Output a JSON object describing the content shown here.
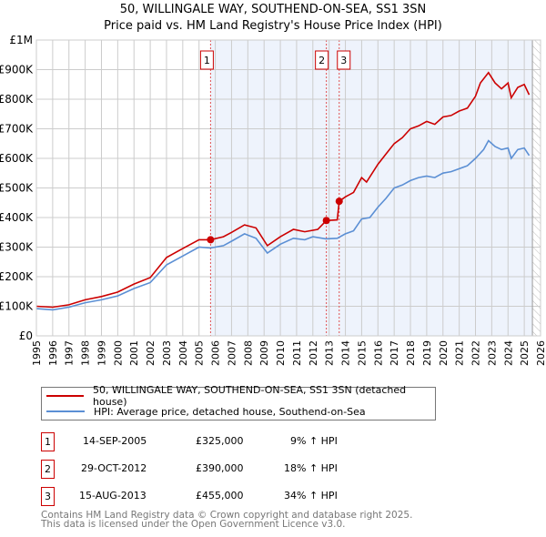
{
  "title": "50, WILLINGALE WAY, SOUTHEND-ON-SEA, SS1 3SN",
  "subtitle": "Price paid vs. HM Land Registry's House Price Index (HPI)",
  "chart_data": {
    "type": "line",
    "title": "Price paid vs. HM Land Registry's House Price Index (HPI)",
    "xlim": [
      1995,
      2026
    ],
    "ylim": [
      0,
      1000000
    ],
    "x_ticks": [
      "1995",
      "1996",
      "1997",
      "1998",
      "1999",
      "2000",
      "2001",
      "2002",
      "2003",
      "2004",
      "2005",
      "2006",
      "2007",
      "2008",
      "2009",
      "2010",
      "2011",
      "2012",
      "2013",
      "2014",
      "2015",
      "2016",
      "2017",
      "2018",
      "2019",
      "2020",
      "2021",
      "2022",
      "2023",
      "2024",
      "2025",
      "2026"
    ],
    "y_ticks": [
      {
        "v": 0,
        "label": "£0"
      },
      {
        "v": 100000,
        "label": "£100K"
      },
      {
        "v": 200000,
        "label": "£200K"
      },
      {
        "v": 300000,
        "label": "£300K"
      },
      {
        "v": 400000,
        "label": "£400K"
      },
      {
        "v": 500000,
        "label": "£500K"
      },
      {
        "v": 600000,
        "label": "£600K"
      },
      {
        "v": 700000,
        "label": "£700K"
      },
      {
        "v": 800000,
        "label": "£800K"
      },
      {
        "v": 900000,
        "label": "£900K"
      },
      {
        "v": 1000000,
        "label": "£1M"
      }
    ],
    "grid": true,
    "shaded_range": [
      2005.7,
      2025.5
    ],
    "hatched_from": 2025.5,
    "series": [
      {
        "name": "50, WILLINGALE WAY, SOUTHEND-ON-SEA, SS1 3SN (detached house)",
        "color": "#cc0000",
        "x": [
          1995,
          1996,
          1997,
          1998,
          1999,
          2000,
          2001,
          2002,
          2003,
          2004,
          2005,
          2005.7,
          2006.5,
          2007,
          2007.8,
          2008.5,
          2009.2,
          2010,
          2010.8,
          2011.5,
          2012.3,
          2012.83,
          2013.5,
          2013.62,
          2014,
          2014.5,
          2015,
          2015.3,
          2016,
          2016.5,
          2017,
          2017.5,
          2018,
          2018.5,
          2019,
          2019.5,
          2020,
          2020.5,
          2021,
          2021.5,
          2022,
          2022.3,
          2022.8,
          2023.2,
          2023.6,
          2024,
          2024.2,
          2024.6,
          2025,
          2025.3
        ],
        "y": [
          100000,
          97000,
          105000,
          122000,
          133000,
          148000,
          175000,
          197000,
          265000,
          295000,
          325000,
          325000,
          335000,
          350000,
          375000,
          365000,
          305000,
          335000,
          360000,
          352000,
          360000,
          390000,
          392000,
          455000,
          470000,
          485000,
          535000,
          520000,
          580000,
          615000,
          650000,
          670000,
          700000,
          710000,
          725000,
          715000,
          740000,
          745000,
          760000,
          770000,
          810000,
          855000,
          890000,
          855000,
          835000,
          855000,
          805000,
          840000,
          850000,
          815000
        ]
      },
      {
        "name": "HPI: Average price, detached house, Southend-on-Sea",
        "color": "#5b8fd4",
        "x": [
          1995,
          1996,
          1997,
          1998,
          1999,
          2000,
          2001,
          2002,
          2003,
          2004,
          2005,
          2005.7,
          2006.5,
          2007,
          2007.8,
          2008.5,
          2009.2,
          2010,
          2010.8,
          2011.5,
          2012,
          2012.8,
          2013.5,
          2014,
          2014.5,
          2015,
          2015.5,
          2016,
          2016.5,
          2017,
          2017.5,
          2018,
          2018.5,
          2019,
          2019.5,
          2020,
          2020.5,
          2021,
          2021.5,
          2022,
          2022.5,
          2022.8,
          2023.2,
          2023.6,
          2024,
          2024.2,
          2024.6,
          2025,
          2025.3
        ],
        "y": [
          92000,
          88000,
          97000,
          112000,
          122000,
          135000,
          160000,
          180000,
          240000,
          270000,
          300000,
          297000,
          305000,
          320000,
          345000,
          330000,
          280000,
          310000,
          330000,
          325000,
          335000,
          328000,
          330000,
          345000,
          355000,
          395000,
          400000,
          435000,
          465000,
          500000,
          510000,
          525000,
          535000,
          540000,
          535000,
          550000,
          555000,
          565000,
          575000,
          600000,
          630000,
          660000,
          640000,
          630000,
          635000,
          600000,
          630000,
          635000,
          610000
        ]
      }
    ],
    "sales": [
      {
        "id": "1",
        "x": 2005.71,
        "y": 325000
      },
      {
        "id": "2",
        "x": 2012.83,
        "y": 390000
      },
      {
        "id": "3",
        "x": 2013.62,
        "y": 455000
      }
    ]
  },
  "legend": {
    "property": "50, WILLINGALE WAY, SOUTHEND-ON-SEA, SS1 3SN (detached house)",
    "hpi": "HPI: Average price, detached house, Southend-on-Sea"
  },
  "transactions": [
    {
      "id": "1",
      "date": "14-SEP-2005",
      "price": "£325,000",
      "hpi": "9% ↑ HPI"
    },
    {
      "id": "2",
      "date": "29-OCT-2012",
      "price": "£390,000",
      "hpi": "18% ↑ HPI"
    },
    {
      "id": "3",
      "date": "15-AUG-2013",
      "price": "£455,000",
      "hpi": "34% ↑ HPI"
    }
  ],
  "footer": {
    "line1": "Contains HM Land Registry data © Crown copyright and database right 2025.",
    "line2": "This data is licensed under the Open Government Licence v3.0."
  }
}
